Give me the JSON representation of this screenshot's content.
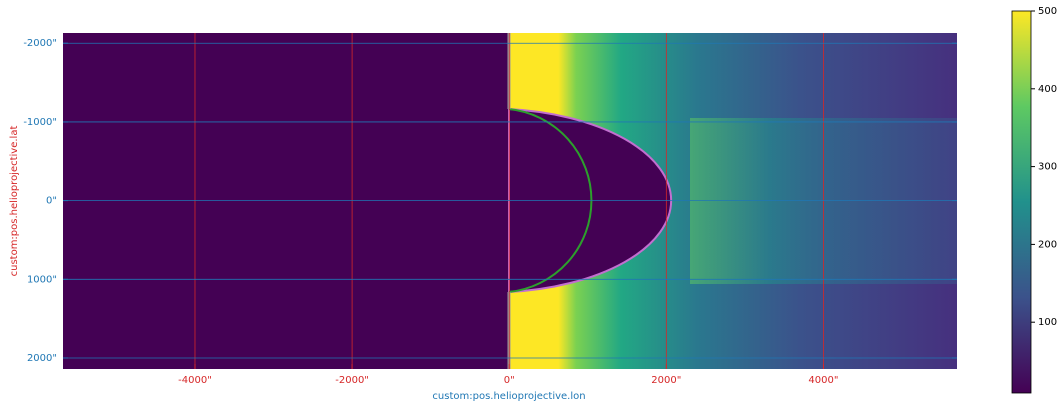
{
  "chart_data": {
    "type": "image",
    "x_label": "custom:pos.helioprojective.lon",
    "y_label": "custom:pos.helioprojective.lat",
    "xlim": [
      -5680,
      5700
    ],
    "ylim": [
      -2130,
      2140
    ],
    "y_inverted": true,
    "xticks": [
      {
        "value": -4000,
        "label": "-4000\""
      },
      {
        "value": -2000,
        "label": "-2000\""
      },
      {
        "value": 0,
        "label": "0\""
      },
      {
        "value": 2000,
        "label": "2000\""
      },
      {
        "value": 4000,
        "label": "4000\""
      }
    ],
    "yticks": [
      {
        "value": -2000,
        "label": "-2000\""
      },
      {
        "value": -1000,
        "label": "-1000\""
      },
      {
        "value": 0,
        "label": "0\""
      },
      {
        "value": 1000,
        "label": "1000\""
      },
      {
        "value": 2000,
        "label": "2000\""
      }
    ],
    "grid": true,
    "x_color": "#d62728",
    "y_color": "#1f77b4",
    "xlabel_color": "#1f77b4",
    "ylabel_color": "#d62728",
    "colorbar": {
      "clim": [
        9,
        500
      ],
      "ticks": [
        100,
        200,
        300,
        400,
        500
      ]
    }
  }
}
